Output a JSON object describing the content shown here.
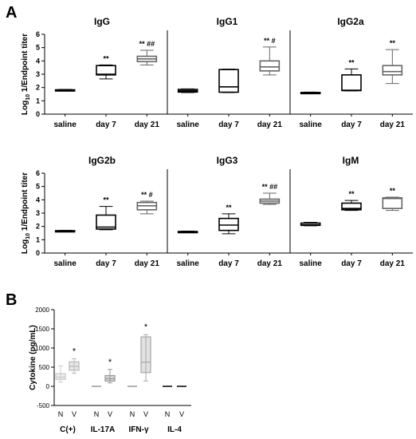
{
  "panel_labels": [
    "A",
    "B"
  ],
  "chart_data": [
    {
      "type": "box",
      "title": "IgG",
      "ylabel": "Log10 1/Endpoint titer",
      "ylim": [
        0,
        6
      ],
      "yticks": [
        0,
        1,
        2,
        3,
        4,
        5,
        6
      ],
      "categories": [
        "saline",
        "day 7",
        "day 21"
      ],
      "boxes": [
        {
          "min": 1.75,
          "q1": 1.78,
          "median": 1.8,
          "q3": 1.83,
          "max": 1.86,
          "color": "#000000",
          "annotation": ""
        },
        {
          "min": 2.65,
          "q1": 2.95,
          "median": 3.0,
          "q3": 3.65,
          "max": 3.7,
          "color": "#000000",
          "annotation": "**"
        },
        {
          "min": 3.7,
          "q1": 3.95,
          "median": 4.15,
          "q3": 4.35,
          "max": 4.8,
          "color": "#666666",
          "annotation": "** ##"
        }
      ]
    },
    {
      "type": "box",
      "title": "IgG1",
      "ylim": [
        0,
        6
      ],
      "categories": [
        "saline",
        "day 7",
        "day 21"
      ],
      "boxes": [
        {
          "min": 1.62,
          "q1": 1.66,
          "median": 1.75,
          "q3": 1.86,
          "max": 1.9,
          "color": "#000000",
          "annotation": ""
        },
        {
          "min": 1.62,
          "q1": 1.65,
          "median": 2.05,
          "q3": 3.35,
          "max": 3.38,
          "color": "#000000",
          "annotation": ""
        },
        {
          "min": 2.95,
          "q1": 3.25,
          "median": 3.55,
          "q3": 4.0,
          "max": 5.05,
          "color": "#666666",
          "annotation": "** #"
        }
      ]
    },
    {
      "type": "box",
      "title": "IgG2a",
      "ylim": [
        0,
        6
      ],
      "categories": [
        "saline",
        "day 7",
        "day 21"
      ],
      "boxes": [
        {
          "min": 1.55,
          "q1": 1.58,
          "median": 1.6,
          "q3": 1.63,
          "max": 1.66,
          "color": "#000000",
          "annotation": ""
        },
        {
          "min": 1.75,
          "q1": 1.77,
          "median": 1.8,
          "q3": 2.95,
          "max": 3.4,
          "color": "#000000",
          "annotation": "**"
        },
        {
          "min": 2.3,
          "q1": 2.95,
          "median": 3.2,
          "q3": 3.65,
          "max": 4.85,
          "color": "#666666",
          "annotation": "**"
        }
      ]
    },
    {
      "type": "box",
      "title": "IgG2b",
      "ylabel": "Log10 1/Endpoint titer",
      "ylim": [
        0,
        6
      ],
      "yticks": [
        0,
        1,
        2,
        3,
        4,
        5,
        6
      ],
      "categories": [
        "saline",
        "day 7",
        "day 21"
      ],
      "boxes": [
        {
          "min": 1.6,
          "q1": 1.63,
          "median": 1.65,
          "q3": 1.68,
          "max": 1.7,
          "color": "#000000",
          "annotation": ""
        },
        {
          "min": 1.75,
          "q1": 1.8,
          "median": 1.95,
          "q3": 2.85,
          "max": 3.5,
          "color": "#000000",
          "annotation": "**"
        },
        {
          "min": 2.95,
          "q1": 3.25,
          "median": 3.55,
          "q3": 3.8,
          "max": 3.9,
          "color": "#666666",
          "annotation": "** #"
        }
      ]
    },
    {
      "type": "box",
      "title": "IgG3",
      "ylim": [
        0,
        6
      ],
      "categories": [
        "saline",
        "day 7",
        "day 21"
      ],
      "boxes": [
        {
          "min": 1.55,
          "q1": 1.57,
          "median": 1.6,
          "q3": 1.62,
          "max": 1.65,
          "color": "#000000",
          "annotation": ""
        },
        {
          "min": 1.45,
          "q1": 1.7,
          "median": 2.1,
          "q3": 2.6,
          "max": 2.95,
          "color": "#000000",
          "annotation": "**"
        },
        {
          "min": 3.65,
          "q1": 3.75,
          "median": 3.9,
          "q3": 4.05,
          "max": 4.5,
          "color": "#666666",
          "annotation": "** ##"
        }
      ]
    },
    {
      "type": "box",
      "title": "IgM",
      "ylim": [
        0,
        6
      ],
      "categories": [
        "saline",
        "day 7",
        "day 21"
      ],
      "boxes": [
        {
          "min": 2.05,
          "q1": 2.08,
          "median": 2.12,
          "q3": 2.25,
          "max": 2.3,
          "color": "#000000",
          "annotation": ""
        },
        {
          "min": 3.2,
          "q1": 3.25,
          "median": 3.35,
          "q3": 3.75,
          "max": 3.95,
          "color": "#000000",
          "annotation": "**"
        },
        {
          "min": 3.2,
          "q1": 3.35,
          "median": 4.1,
          "q3": 4.15,
          "max": 4.2,
          "color": "#666666",
          "annotation": "**"
        }
      ]
    },
    {
      "type": "box",
      "ylabel": "Cytokine (pg/mL)",
      "ylim": [
        -500,
        2000
      ],
      "yticks": [
        -500,
        0,
        500,
        1000,
        1500,
        2000
      ],
      "categories": [
        "N",
        "V",
        "N",
        "V",
        "N",
        "V",
        "N",
        "V"
      ],
      "groups": [
        "C(+)",
        "IL-17A",
        "IFN-γ",
        "IL-4"
      ],
      "boxes": [
        {
          "min": 110,
          "q1": 180,
          "median": 240,
          "q3": 330,
          "max": 530,
          "color": "#cccccc",
          "annotation": ""
        },
        {
          "min": 340,
          "q1": 420,
          "median": 520,
          "q3": 640,
          "max": 720,
          "color": "#bbbbbb",
          "annotation": "*"
        },
        {
          "min": 0,
          "q1": 0,
          "median": 0,
          "q3": 0,
          "max": 0,
          "color": "#999999",
          "annotation": ""
        },
        {
          "min": 90,
          "q1": 140,
          "median": 200,
          "q3": 280,
          "max": 440,
          "color": "#999999",
          "annotation": "*"
        },
        {
          "min": 0,
          "q1": 0,
          "median": 0,
          "q3": 0,
          "max": 0,
          "color": "#999999",
          "annotation": ""
        },
        {
          "min": 140,
          "q1": 360,
          "median": 630,
          "q3": 1290,
          "max": 1350,
          "color": "#aaaaaa",
          "annotation": "*"
        },
        {
          "min": 0,
          "q1": 0,
          "median": 0,
          "q3": 0,
          "max": 0,
          "color": "#000000",
          "annotation": ""
        },
        {
          "min": 0,
          "q1": 0,
          "median": 0,
          "q3": 0,
          "max": 0,
          "color": "#000000",
          "annotation": ""
        }
      ]
    }
  ]
}
